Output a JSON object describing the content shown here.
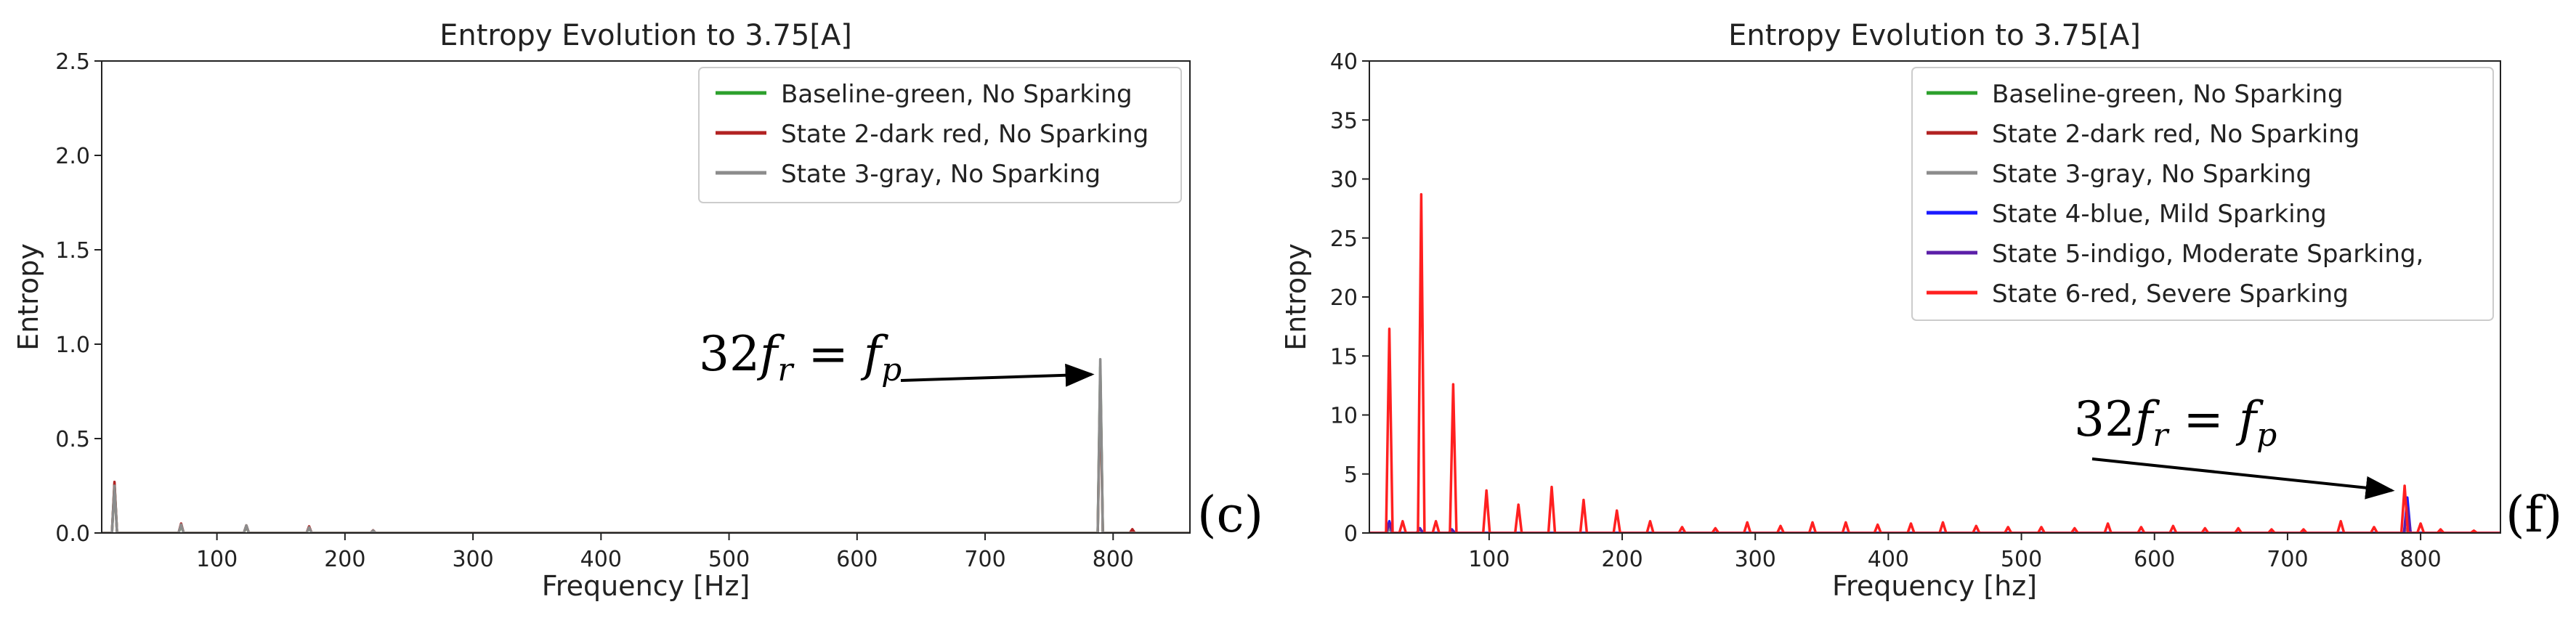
{
  "chart_data": [
    {
      "type": "line",
      "panel": "c",
      "title": "Entropy Evolution to 3.75[A]",
      "xlabel": "Frequency [Hz]",
      "ylabel": "Entropy",
      "xlim": [
        10,
        860
      ],
      "ylim": [
        0,
        2.5
      ],
      "xticks": [
        100,
        200,
        300,
        400,
        500,
        600,
        700,
        800
      ],
      "yticks": [
        0.0,
        0.5,
        1.0,
        1.5,
        2.0,
        2.5
      ],
      "ytick_format": 1,
      "legend_position": "top-right",
      "annotation": {
        "lhs": "32",
        "f1": "f",
        "s1": "r",
        "eq": " = ",
        "f2": "f",
        "s2": "p",
        "points_to": [
          790,
          0.84
        ]
      },
      "series": [
        {
          "name": "Baseline-green, No Sparking",
          "color": "#2ca02c",
          "peaks": [
            [
              20,
              0.26
            ],
            [
              72,
              0.04
            ],
            [
              123,
              0.035
            ],
            [
              172,
              0.03
            ],
            [
              222,
              0.012
            ],
            [
              790,
              0.88
            ]
          ]
        },
        {
          "name": "State 2-dark red, No Sparking",
          "color": "#b22222",
          "peaks": [
            [
              20,
              0.27
            ],
            [
              72,
              0.05
            ],
            [
              123,
              0.04
            ],
            [
              172,
              0.035
            ],
            [
              222,
              0.014
            ],
            [
              790,
              0.84
            ],
            [
              815,
              0.02
            ]
          ]
        },
        {
          "name": "State 3-gray, No Sparking",
          "color": "#8c8c8c",
          "peaks": [
            [
              20,
              0.25
            ],
            [
              72,
              0.045
            ],
            [
              123,
              0.04
            ],
            [
              172,
              0.03
            ],
            [
              222,
              0.013
            ],
            [
              790,
              0.92
            ]
          ]
        }
      ]
    },
    {
      "type": "line",
      "panel": "f",
      "title": "Entropy Evolution to 3.75[A]",
      "xlabel": "Frequency [hz]",
      "ylabel": "Entropy",
      "xlim": [
        10,
        860
      ],
      "ylim": [
        0,
        40
      ],
      "xticks": [
        100,
        200,
        300,
        400,
        500,
        600,
        700,
        800
      ],
      "yticks": [
        0,
        5,
        10,
        15,
        20,
        25,
        30,
        35,
        40
      ],
      "ytick_format": 0,
      "legend_position": "top-right",
      "annotation": {
        "lhs": "32",
        "f1": "f",
        "s1": "r",
        "eq": " = ",
        "f2": "f",
        "s2": "p",
        "points_to": [
          785,
          3.6
        ]
      },
      "series": [
        {
          "name": "Baseline-green, No Sparking",
          "color": "#2ca02c",
          "peaks": [
            [
              25,
              0.3
            ],
            [
              790,
              0.4
            ]
          ]
        },
        {
          "name": "State 2-dark red, No Sparking",
          "color": "#b22222",
          "peaks": [
            [
              25,
              0.3
            ],
            [
              790,
              0.4
            ]
          ]
        },
        {
          "name": "State 3-gray, No Sparking",
          "color": "#8c8c8c",
          "peaks": [
            [
              25,
              0.3
            ],
            [
              790,
              0.4
            ]
          ]
        },
        {
          "name": "State 4-blue, Mild Sparking",
          "color": "#1a1aff",
          "peaks": [
            [
              25,
              1.0
            ],
            [
              48,
              0.4
            ],
            [
              72,
              0.3
            ],
            [
              790,
              3.0
            ]
          ]
        },
        {
          "name": "State 5-indigo, Moderate Sparking,",
          "color": "#5b1fa8",
          "peaks": [
            [
              25,
              0.8
            ],
            [
              48,
              0.35
            ],
            [
              72,
              0.25
            ],
            [
              790,
              2.2
            ]
          ]
        },
        {
          "name": "State 6-red, Severe Sparking",
          "color": "#ff2020",
          "peaks": [
            [
              25,
              17.3
            ],
            [
              35,
              1.0
            ],
            [
              49,
              28.7
            ],
            [
              60,
              1.0
            ],
            [
              73,
              12.6
            ],
            [
              98,
              3.6
            ],
            [
              122,
              2.4
            ],
            [
              147,
              3.9
            ],
            [
              171,
              2.8
            ],
            [
              196,
              1.9
            ],
            [
              221,
              1.0
            ],
            [
              245,
              0.5
            ],
            [
              270,
              0.4
            ],
            [
              294,
              0.9
            ],
            [
              319,
              0.6
            ],
            [
              343,
              0.9
            ],
            [
              368,
              0.9
            ],
            [
              392,
              0.7
            ],
            [
              417,
              0.8
            ],
            [
              441,
              0.9
            ],
            [
              466,
              0.6
            ],
            [
              490,
              0.5
            ],
            [
              515,
              0.5
            ],
            [
              540,
              0.4
            ],
            [
              565,
              0.8
            ],
            [
              590,
              0.5
            ],
            [
              614,
              0.6
            ],
            [
              638,
              0.4
            ],
            [
              663,
              0.4
            ],
            [
              688,
              0.3
            ],
            [
              712,
              0.3
            ],
            [
              740,
              1.0
            ],
            [
              765,
              0.5
            ],
            [
              788,
              4.0
            ],
            [
              800,
              0.8
            ],
            [
              815,
              0.3
            ],
            [
              840,
              0.2
            ]
          ]
        }
      ]
    }
  ],
  "panel_labels": {
    "left": "(c)",
    "right": "(f)"
  }
}
